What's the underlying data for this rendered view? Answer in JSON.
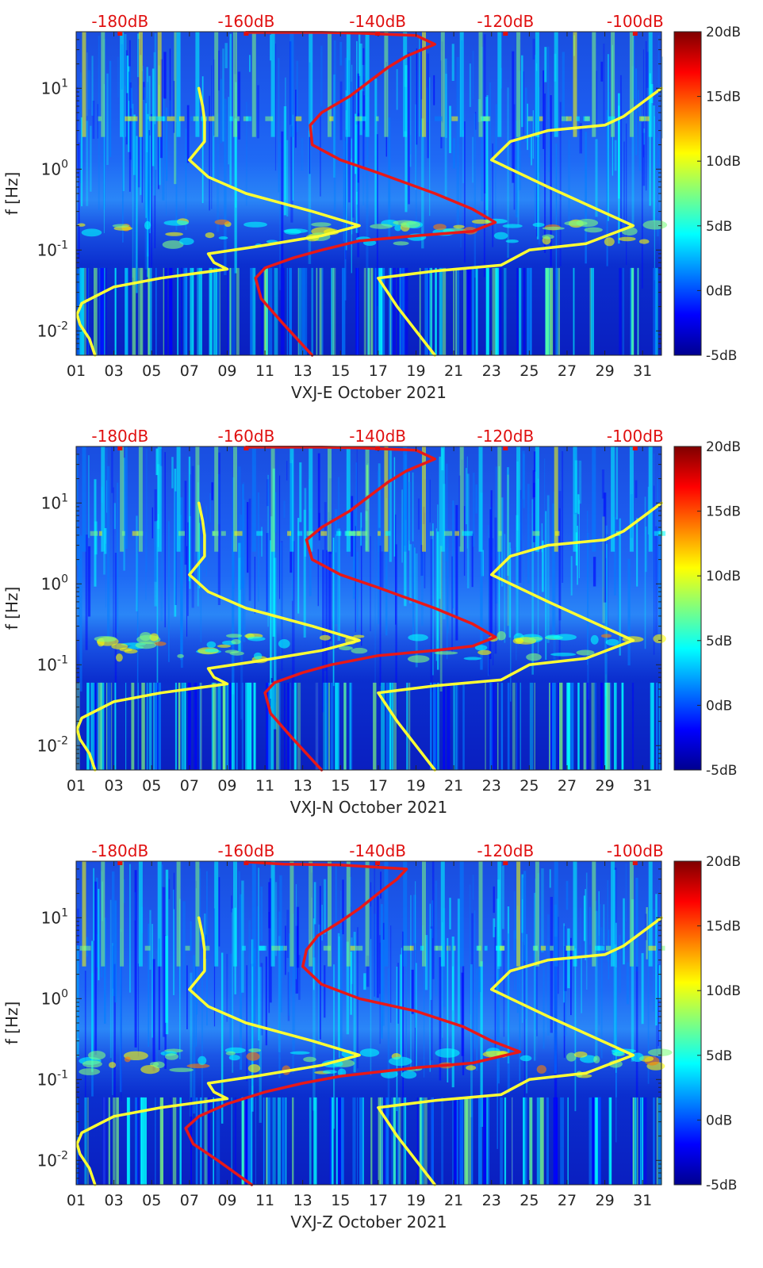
{
  "colorbar": {
    "colors": [
      "#00008f",
      "#0000ff",
      "#007fff",
      "#00ffff",
      "#7fff7f",
      "#ffff00",
      "#ff7f00",
      "#ff0000",
      "#7f0000"
    ],
    "ticks": [
      "20dB",
      "15dB",
      "10dB",
      "5dB",
      "0dB",
      "-5dB"
    ],
    "tick_values": [
      20,
      15,
      10,
      5,
      0,
      -5
    ],
    "range": [
      -5,
      20
    ]
  },
  "chart_data": [
    {
      "type": "heatmap",
      "xlabel": "VXJ-E October 2021",
      "ylabel": "f [Hz]",
      "x_ticks": [
        "01",
        "03",
        "05",
        "07",
        "09",
        "11",
        "13",
        "15",
        "17",
        "19",
        "21",
        "23",
        "25",
        "27",
        "29",
        "31"
      ],
      "x_tick_values": [
        1,
        3,
        5,
        7,
        9,
        11,
        13,
        15,
        17,
        19,
        21,
        23,
        25,
        27,
        29,
        31
      ],
      "xlim": [
        1,
        32
      ],
      "y_ticks": [
        "10^-2",
        "10^-1",
        "10^0",
        "10^1"
      ],
      "y_tick_values": [
        0.01,
        0.1,
        1,
        10
      ],
      "ylim": [
        0.005,
        50
      ],
      "yscale": "log",
      "top_ticks": [
        "-180dB",
        "-160dB",
        "-140dB",
        "-120dB",
        "-100dB"
      ],
      "top_tick_values": [
        3.5,
        10.8,
        18.4,
        25.8,
        33.3
      ],
      "colorbar_label": "dB",
      "series": [
        {
          "color": "#ffff33",
          "points": [
            [
              2,
              0.005
            ],
            [
              1.7,
              0.008
            ],
            [
              1.2,
              0.012
            ],
            [
              1.05,
              0.016
            ],
            [
              1.3,
              0.022
            ],
            [
              3,
              0.035
            ],
            [
              5.5,
              0.045
            ],
            [
              9,
              0.058
            ],
            [
              8.3,
              0.07
            ],
            [
              8,
              0.09
            ],
            [
              10.5,
              0.11
            ],
            [
              14,
              0.15
            ],
            [
              16,
              0.2
            ],
            [
              13.5,
              0.3
            ],
            [
              10,
              0.5
            ],
            [
              8,
              0.8
            ],
            [
              7,
              1.3
            ],
            [
              7.8,
              2.2
            ],
            [
              7.8,
              4
            ],
            [
              7.7,
              6
            ],
            [
              7.5,
              10
            ]
          ]
        },
        {
          "color": "#ffff33",
          "points": [
            [
              20,
              0.005
            ],
            [
              18,
              0.02
            ],
            [
              17,
              0.045
            ],
            [
              20,
              0.055
            ],
            [
              23.5,
              0.065
            ],
            [
              25,
              0.1
            ],
            [
              28,
              0.12
            ],
            [
              30.5,
              0.2
            ],
            [
              26,
              0.6
            ],
            [
              23,
              1.3
            ],
            [
              24,
              2.2
            ],
            [
              26,
              3
            ],
            [
              29,
              3.5
            ],
            [
              30,
              4.5
            ],
            [
              32,
              10
            ]
          ]
        },
        {
          "color": "#e81818",
          "points": [
            [
              13.5,
              0.005
            ],
            [
              12,
              0.012
            ],
            [
              10.8,
              0.025
            ],
            [
              10.5,
              0.045
            ],
            [
              11,
              0.06
            ],
            [
              12.5,
              0.08
            ],
            [
              14,
              0.1
            ],
            [
              16,
              0.13
            ],
            [
              19,
              0.15
            ],
            [
              22,
              0.17
            ],
            [
              23.2,
              0.22
            ],
            [
              22,
              0.32
            ],
            [
              20,
              0.5
            ],
            [
              17,
              0.9
            ],
            [
              15,
              1.3
            ],
            [
              13.5,
              2
            ],
            [
              13.4,
              3.5
            ],
            [
              14,
              5
            ],
            [
              15.5,
              8
            ],
            [
              16.5,
              12
            ],
            [
              17.5,
              18
            ],
            [
              18.5,
              25
            ],
            [
              20,
              35
            ],
            [
              19,
              45
            ],
            [
              16,
              48
            ],
            [
              14,
              49
            ],
            [
              10,
              49
            ]
          ]
        }
      ]
    },
    {
      "type": "heatmap",
      "xlabel": "VXJ-N October 2021",
      "ylabel": "f [Hz]",
      "x_ticks": [
        "01",
        "03",
        "05",
        "07",
        "09",
        "11",
        "13",
        "15",
        "17",
        "19",
        "21",
        "23",
        "25",
        "27",
        "29",
        "31"
      ],
      "x_tick_values": [
        1,
        3,
        5,
        7,
        9,
        11,
        13,
        15,
        17,
        19,
        21,
        23,
        25,
        27,
        29,
        31
      ],
      "xlim": [
        1,
        32
      ],
      "y_ticks": [
        "10^-2",
        "10^-1",
        "10^0",
        "10^1"
      ],
      "y_tick_values": [
        0.01,
        0.1,
        1,
        10
      ],
      "ylim": [
        0.005,
        50
      ],
      "yscale": "log",
      "top_ticks": [
        "-180dB",
        "-160dB",
        "-140dB",
        "-120dB",
        "-100dB"
      ],
      "top_tick_values": [
        3.5,
        10.8,
        18.4,
        25.8,
        33.3
      ],
      "colorbar_label": "dB",
      "series": [
        {
          "color": "#ffff33",
          "points": [
            [
              2,
              0.005
            ],
            [
              1.7,
              0.008
            ],
            [
              1.2,
              0.012
            ],
            [
              1.05,
              0.016
            ],
            [
              1.3,
              0.022
            ],
            [
              3,
              0.035
            ],
            [
              5.5,
              0.045
            ],
            [
              9,
              0.058
            ],
            [
              8.3,
              0.07
            ],
            [
              8,
              0.09
            ],
            [
              10.5,
              0.11
            ],
            [
              14,
              0.15
            ],
            [
              16,
              0.2
            ],
            [
              13.5,
              0.3
            ],
            [
              10,
              0.5
            ],
            [
              8,
              0.8
            ],
            [
              7,
              1.3
            ],
            [
              7.8,
              2.2
            ],
            [
              7.8,
              4
            ],
            [
              7.7,
              6
            ],
            [
              7.5,
              10
            ]
          ]
        },
        {
          "color": "#ffff33",
          "points": [
            [
              20,
              0.005
            ],
            [
              18,
              0.02
            ],
            [
              17,
              0.045
            ],
            [
              20,
              0.055
            ],
            [
              23.5,
              0.065
            ],
            [
              25,
              0.1
            ],
            [
              28,
              0.12
            ],
            [
              30.5,
              0.2
            ],
            [
              26,
              0.6
            ],
            [
              23,
              1.3
            ],
            [
              24,
              2.2
            ],
            [
              26,
              3
            ],
            [
              29,
              3.5
            ],
            [
              30,
              4.5
            ],
            [
              32,
              10
            ]
          ]
        },
        {
          "color": "#e81818",
          "points": [
            [
              14,
              0.005
            ],
            [
              12.5,
              0.012
            ],
            [
              11.3,
              0.025
            ],
            [
              11,
              0.045
            ],
            [
              11.5,
              0.06
            ],
            [
              13,
              0.08
            ],
            [
              14.5,
              0.1
            ],
            [
              17,
              0.13
            ],
            [
              20,
              0.15
            ],
            [
              22,
              0.17
            ],
            [
              23.2,
              0.22
            ],
            [
              22,
              0.32
            ],
            [
              20,
              0.5
            ],
            [
              17,
              0.9
            ],
            [
              15,
              1.3
            ],
            [
              13.5,
              2
            ],
            [
              13.2,
              3.5
            ],
            [
              14,
              5
            ],
            [
              15.5,
              8
            ],
            [
              16.5,
              12
            ],
            [
              17.5,
              18
            ],
            [
              18.5,
              25
            ],
            [
              20,
              35
            ],
            [
              19,
              45
            ],
            [
              16,
              48
            ],
            [
              14,
              49
            ],
            [
              10,
              49
            ]
          ]
        }
      ]
    },
    {
      "type": "heatmap",
      "xlabel": "VXJ-Z October 2021",
      "ylabel": "f [Hz]",
      "x_ticks": [
        "01",
        "03",
        "05",
        "07",
        "09",
        "11",
        "13",
        "15",
        "17",
        "19",
        "21",
        "23",
        "25",
        "27",
        "29",
        "31"
      ],
      "x_tick_values": [
        1,
        3,
        5,
        7,
        9,
        11,
        13,
        15,
        17,
        19,
        21,
        23,
        25,
        27,
        29,
        31
      ],
      "xlim": [
        1,
        32
      ],
      "y_ticks": [
        "10^-2",
        "10^-1",
        "10^0",
        "10^1"
      ],
      "y_tick_values": [
        0.01,
        0.1,
        1,
        10
      ],
      "ylim": [
        0.005,
        50
      ],
      "yscale": "log",
      "top_ticks": [
        "-180dB",
        "-160dB",
        "-140dB",
        "-120dB",
        "-100dB"
      ],
      "top_tick_values": [
        3.5,
        10.8,
        18.4,
        25.8,
        33.3
      ],
      "colorbar_label": "dB",
      "series": [
        {
          "color": "#ffff33",
          "points": [
            [
              2,
              0.005
            ],
            [
              1.7,
              0.008
            ],
            [
              1.2,
              0.012
            ],
            [
              1.05,
              0.016
            ],
            [
              1.3,
              0.022
            ],
            [
              3,
              0.035
            ],
            [
              5.5,
              0.045
            ],
            [
              9,
              0.058
            ],
            [
              8.3,
              0.07
            ],
            [
              8,
              0.09
            ],
            [
              10.5,
              0.11
            ],
            [
              14,
              0.15
            ],
            [
              16,
              0.2
            ],
            [
              13.5,
              0.3
            ],
            [
              10,
              0.5
            ],
            [
              8,
              0.8
            ],
            [
              7,
              1.3
            ],
            [
              7.8,
              2.2
            ],
            [
              7.8,
              4
            ],
            [
              7.7,
              6
            ],
            [
              7.5,
              10
            ]
          ]
        },
        {
          "color": "#ffff33",
          "points": [
            [
              20,
              0.005
            ],
            [
              18,
              0.02
            ],
            [
              17,
              0.045
            ],
            [
              20,
              0.055
            ],
            [
              23.5,
              0.065
            ],
            [
              25,
              0.1
            ],
            [
              28,
              0.12
            ],
            [
              30.5,
              0.2
            ],
            [
              26,
              0.6
            ],
            [
              23,
              1.3
            ],
            [
              24,
              2.2
            ],
            [
              26,
              3
            ],
            [
              29,
              3.5
            ],
            [
              30,
              4.5
            ],
            [
              32,
              10
            ]
          ]
        },
        {
          "color": "#e81818",
          "points": [
            [
              10.3,
              0.005
            ],
            [
              8.5,
              0.01
            ],
            [
              7.2,
              0.016
            ],
            [
              6.8,
              0.025
            ],
            [
              7.5,
              0.035
            ],
            [
              9,
              0.05
            ],
            [
              11,
              0.07
            ],
            [
              13,
              0.09
            ],
            [
              15,
              0.11
            ],
            [
              19,
              0.14
            ],
            [
              22,
              0.16
            ],
            [
              24.5,
              0.22
            ],
            [
              23,
              0.3
            ],
            [
              21.5,
              0.45
            ],
            [
              19,
              0.7
            ],
            [
              16,
              1
            ],
            [
              14,
              1.5
            ],
            [
              13,
              2.5
            ],
            [
              13.2,
              4
            ],
            [
              13.8,
              6
            ],
            [
              15,
              9
            ],
            [
              16,
              13
            ],
            [
              17,
              20
            ],
            [
              18,
              30
            ],
            [
              18.5,
              40
            ],
            [
              15,
              45
            ],
            [
              12,
              46
            ],
            [
              10,
              49
            ]
          ]
        }
      ]
    }
  ]
}
